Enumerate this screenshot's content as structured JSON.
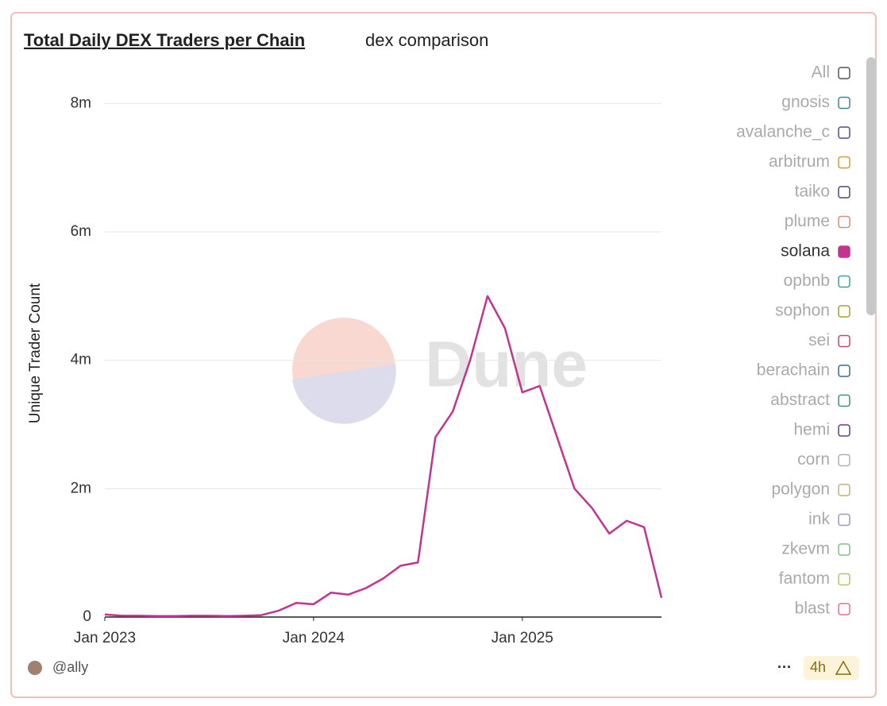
{
  "chart_data": {
    "type": "line",
    "title": "Total Daily DEX Traders per Chain",
    "subtitle": "dex comparison",
    "y_label": "Unique Trader Count",
    "watermark": "Dune",
    "author": "@ally",
    "menu_label": "···",
    "refresh_label": "4h",
    "legend_all_label": "All",
    "x": [
      "2023-01",
      "2023-02",
      "2023-03",
      "2023-04",
      "2023-05",
      "2023-06",
      "2023-07",
      "2023-08",
      "2023-09",
      "2023-10",
      "2023-11",
      "2023-12",
      "2024-01",
      "2024-02",
      "2024-03",
      "2024-04",
      "2024-05",
      "2024-06",
      "2024-07",
      "2024-08",
      "2024-09",
      "2024-10",
      "2024-11",
      "2024-12",
      "2025-01",
      "2025-02",
      "2025-03",
      "2025-04",
      "2025-05",
      "2025-06",
      "2025-07",
      "2025-08",
      "2025-09"
    ],
    "xticks": [
      {
        "value": "2023-01",
        "label": "Jan 2023"
      },
      {
        "value": "2024-01",
        "label": "Jan 2024"
      },
      {
        "value": "2025-01",
        "label": "Jan 2025"
      }
    ],
    "ylim": [
      0,
      8400000
    ],
    "yticks": [
      0,
      {
        "value": 2000000,
        "label": "2m"
      },
      {
        "value": 4000000,
        "label": "4m"
      },
      {
        "value": 6000000,
        "label": "6m"
      },
      {
        "value": 8000000,
        "label": "8m"
      }
    ],
    "grid": true,
    "series": [
      {
        "name": "gnosis",
        "color": "#3a8a8f"
      },
      {
        "name": "avalanche_c",
        "color": "#5a4a8a"
      },
      {
        "name": "arbitrum",
        "color": "#d99a3a"
      },
      {
        "name": "taiko",
        "color": "#4a4a7a"
      },
      {
        "name": "plume",
        "color": "#e08a7a"
      },
      {
        "name": "solana",
        "color": "#c2348f",
        "values": [
          40000,
          20000,
          20000,
          15000,
          15000,
          20000,
          20000,
          15000,
          20000,
          30000,
          100000,
          220000,
          200000,
          380000,
          350000,
          450000,
          600000,
          800000,
          850000,
          2800000,
          3200000,
          4000000,
          5000000,
          4500000,
          3500000,
          3600000,
          2800000,
          2000000,
          1700000,
          1300000,
          1500000,
          1400000,
          300000
        ]
      },
      {
        "name": "opbnb",
        "color": "#3aa0a0"
      },
      {
        "name": "sophon",
        "color": "#a0a040"
      },
      {
        "name": "sei",
        "color": "#c04a6a"
      },
      {
        "name": "berachain",
        "color": "#3a6a9a"
      },
      {
        "name": "abstract",
        "color": "#3a9a6a"
      },
      {
        "name": "hemi",
        "color": "#6a3a8a"
      },
      {
        "name": "corn",
        "color": "#b0b0b0"
      },
      {
        "name": "polygon",
        "color": "#c0b080"
      },
      {
        "name": "ink",
        "color": "#9a9ac0"
      },
      {
        "name": "zkevm",
        "color": "#80c080"
      },
      {
        "name": "fantom",
        "color": "#c0c060"
      },
      {
        "name": "blast",
        "color": "#e07090"
      }
    ]
  }
}
